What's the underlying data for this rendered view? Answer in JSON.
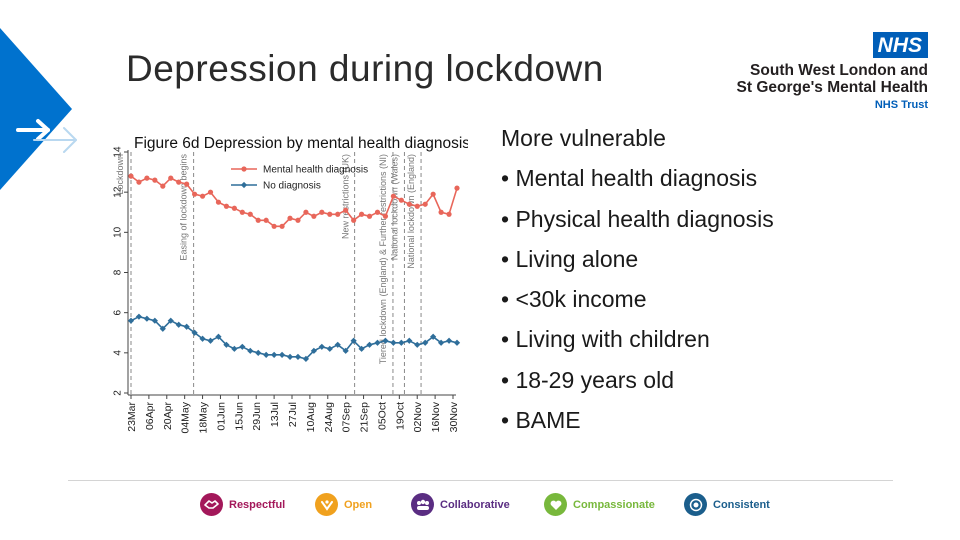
{
  "slide": {
    "title": "Depression during lockdown"
  },
  "logo": {
    "badge": "NHS",
    "line1": "South West London and",
    "line2": "St George's Mental Health",
    "line3": "NHS Trust"
  },
  "colors": {
    "accent_blue": "#0072ce",
    "nhs_blue": "#005eb8",
    "series_red": "#e8665a",
    "series_blue": "#2f6e9a"
  },
  "bullets": {
    "heading": "More vulnerable",
    "items": [
      "• Mental health diagnosis",
      "• Physical health diagnosis",
      "• Living alone",
      "• <30k income",
      "• Living with children",
      "• 18-29 years old",
      "• BAME"
    ]
  },
  "values": [
    {
      "label": "Respectful",
      "icon": "handshake-icon",
      "color": "#a3185a"
    },
    {
      "label": "Open",
      "icon": "open-icon",
      "color": "#f0a11e"
    },
    {
      "label": "Collaborative",
      "icon": "people-icon",
      "color": "#5a2d82"
    },
    {
      "label": "Compassionate",
      "icon": "heart-hands-icon",
      "color": "#78b83c"
    },
    {
      "label": "Consistent",
      "icon": "target-icon",
      "color": "#1b5e8c"
    }
  ],
  "chart_data": {
    "type": "line",
    "title": "Figure 6d Depression by mental health diagnosis",
    "xlabel": "",
    "ylabel": "",
    "ylim": [
      2,
      14
    ],
    "yticks": [
      2,
      4,
      6,
      8,
      10,
      12,
      14
    ],
    "x_tick_labels": [
      "23Mar",
      "06Apr",
      "20Apr",
      "04May",
      "18May",
      "01Jun",
      "15Jun",
      "29Jun",
      "13Jul",
      "27Jul",
      "10Aug",
      "24Aug",
      "07Sep",
      "21Sep",
      "05Oct",
      "19Oct",
      "02Nov",
      "16Nov",
      "30Nov"
    ],
    "legend": "top-left",
    "grid": false,
    "series": [
      {
        "name": "Mental health diagnosis",
        "values": [
          12.8,
          12.5,
          12.7,
          12.6,
          12.3,
          12.7,
          12.5,
          12.4,
          11.9,
          11.8,
          12.0,
          11.5,
          11.3,
          11.2,
          11.0,
          10.9,
          10.6,
          10.6,
          10.3,
          10.3,
          10.7,
          10.6,
          11.0,
          10.8,
          11.0,
          10.9,
          10.9,
          11.1,
          10.6,
          10.9,
          10.8,
          11.0,
          10.8,
          11.8,
          11.6,
          11.4,
          11.3,
          11.4,
          11.9,
          11.0,
          10.9,
          12.2
        ]
      },
      {
        "name": "No diagnosis",
        "values": [
          5.6,
          5.8,
          5.7,
          5.6,
          5.2,
          5.6,
          5.4,
          5.3,
          5.0,
          4.7,
          4.6,
          4.8,
          4.4,
          4.2,
          4.3,
          4.1,
          4.0,
          3.9,
          3.9,
          3.9,
          3.8,
          3.8,
          3.7,
          4.1,
          4.3,
          4.2,
          4.4,
          4.1,
          4.6,
          4.2,
          4.4,
          4.5,
          4.6,
          4.5,
          4.5,
          4.6,
          4.4,
          4.5,
          4.8,
          4.5,
          4.6,
          4.5
        ]
      }
    ],
    "events": [
      {
        "label": "Lockdown",
        "at": "23Mar"
      },
      {
        "label": "Easing of lockdown begins",
        "at": "11May"
      },
      {
        "label": "New restrictions (UK)",
        "at": "14Sep"
      },
      {
        "label": "Tiered lockdown (England) & Further restrictions (NI)",
        "at": "14Oct"
      },
      {
        "label": "National lockdown (Wales)",
        "at": "23Oct"
      },
      {
        "label": "National lockdown (England)",
        "at": "05Nov"
      }
    ]
  }
}
